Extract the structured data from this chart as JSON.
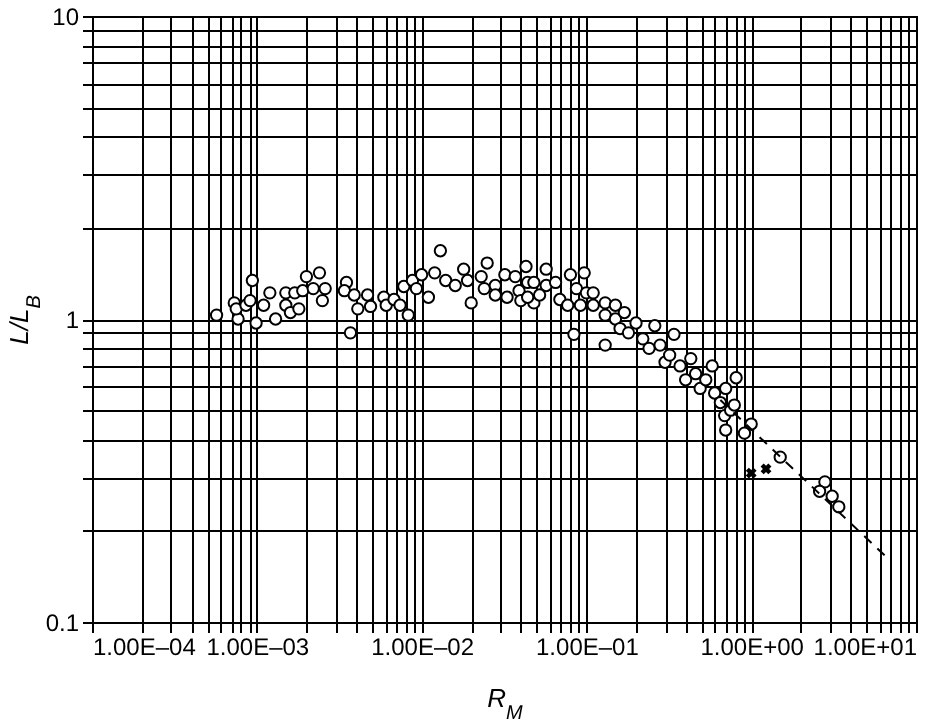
{
  "chart_data": {
    "type": "scatter",
    "xlabel": "R$_{M}$",
    "ylabel": "L/L$_{B}$",
    "log": "xy",
    "grid": true,
    "xlim": [
      0.0001,
      10
    ],
    "ylim": [
      0.1,
      10
    ],
    "xticks": [
      {
        "value": 0.0001,
        "label": "1.00E–04"
      },
      {
        "value": 0.0002,
        "label": null
      },
      {
        "value": 0.0003,
        "label": null
      },
      {
        "value": 0.0004,
        "label": null
      },
      {
        "value": 0.0005,
        "label": null
      },
      {
        "value": 0.0006,
        "label": null
      },
      {
        "value": 0.0007,
        "label": null
      },
      {
        "value": 0.0008,
        "label": null
      },
      {
        "value": 0.0009,
        "label": null
      },
      {
        "value": 0.001,
        "label": "1.00E–03"
      },
      {
        "value": 0.002,
        "label": null
      },
      {
        "value": 0.003,
        "label": null
      },
      {
        "value": 0.004,
        "label": null
      },
      {
        "value": 0.005,
        "label": null
      },
      {
        "value": 0.006,
        "label": null
      },
      {
        "value": 0.007,
        "label": null
      },
      {
        "value": 0.008,
        "label": null
      },
      {
        "value": 0.009,
        "label": null
      },
      {
        "value": 0.01,
        "label": "1.00E–02"
      },
      {
        "value": 0.02,
        "label": null
      },
      {
        "value": 0.03,
        "label": null
      },
      {
        "value": 0.04,
        "label": null
      },
      {
        "value": 0.05,
        "label": null
      },
      {
        "value": 0.06,
        "label": null
      },
      {
        "value": 0.07,
        "label": null
      },
      {
        "value": 0.08,
        "label": null
      },
      {
        "value": 0.09,
        "label": null
      },
      {
        "value": 0.1,
        "label": "1.00E–01"
      },
      {
        "value": 0.2,
        "label": null
      },
      {
        "value": 0.3,
        "label": null
      },
      {
        "value": 0.4,
        "label": null
      },
      {
        "value": 0.5,
        "label": null
      },
      {
        "value": 0.6,
        "label": null
      },
      {
        "value": 0.7,
        "label": null
      },
      {
        "value": 0.8,
        "label": null
      },
      {
        "value": 0.9,
        "label": null
      },
      {
        "value": 1,
        "label": "1.00E+00"
      },
      {
        "value": 2,
        "label": null
      },
      {
        "value": 3,
        "label": null
      },
      {
        "value": 4,
        "label": null
      },
      {
        "value": 5,
        "label": null
      },
      {
        "value": 6,
        "label": null
      },
      {
        "value": 7,
        "label": null
      },
      {
        "value": 8,
        "label": null
      },
      {
        "value": 9,
        "label": null
      },
      {
        "value": 10,
        "label": "1.00E+01"
      }
    ],
    "yticks": [
      0.1,
      {
        "value": 0.2,
        "label": null
      },
      {
        "value": 0.3,
        "label": null
      },
      {
        "value": 0.4,
        "label": null
      },
      {
        "value": 0.5,
        "label": null
      },
      {
        "value": 0.6,
        "label": null
      },
      {
        "value": 0.7,
        "label": null
      },
      {
        "value": 0.8,
        "label": null
      },
      {
        "value": 0.9,
        "label": null
      },
      1,
      {
        "value": 2,
        "label": null
      },
      {
        "value": 3,
        "label": null
      },
      {
        "value": 4,
        "label": null
      },
      {
        "value": 5,
        "label": null
      },
      {
        "value": 6,
        "label": null
      },
      {
        "value": 7,
        "label": null
      },
      {
        "value": 8,
        "label": null
      },
      {
        "value": 9,
        "label": null
      },
      10
    ],
    "series": [
      {
        "type": "scatter",
        "marker": "circle",
        "color": "#000000",
        "x": [
          0.00057,
          0.00073,
          0.00077,
          0.00075,
          0.00086,
          0.00094,
          0.00099,
          0.00091,
          0.0011,
          0.0012,
          0.0013,
          0.0015,
          0.0015,
          0.0016,
          0.0017,
          0.0018,
          0.002,
          0.0019,
          0.0022,
          0.0024,
          0.0025,
          0.0026,
          0.0035,
          0.0034,
          0.0037,
          0.0039,
          0.0041,
          0.0047,
          0.0049,
          0.0059,
          0.0061,
          0.0068,
          0.0074,
          0.0078,
          0.0083,
          0.0088,
          0.0093,
          0.011,
          0.01,
          0.012,
          0.013,
          0.014,
          0.016,
          0.018,
          0.019,
          0.02,
          0.023,
          0.025,
          0.024,
          0.028,
          0.028,
          0.032,
          0.033,
          0.037,
          0.039,
          0.04,
          0.043,
          0.044,
          0.048,
          0.048,
          0.044,
          0.057,
          0.057,
          0.052,
          0.065,
          0.069,
          0.08,
          0.077,
          0.087,
          0.097,
          0.1,
          0.092,
          0.11,
          0.11,
          0.13,
          0.13,
          0.084,
          0.15,
          0.15,
          0.17,
          0.16,
          0.18,
          0.2,
          0.22,
          0.26,
          0.24,
          0.13,
          0.28,
          0.34,
          0.3,
          0.32,
          0.37,
          0.43,
          0.4,
          0.46,
          0.49,
          0.53,
          0.58,
          0.6,
          0.65,
          0.7,
          0.69,
          0.75,
          0.81,
          0.79,
          0.7,
          0.91,
          1.0,
          1.5,
          2.8,
          2.6,
          3.1,
          3.4
        ],
        "values": [
          1.03,
          1.13,
          1.0,
          1.08,
          1.11,
          1.34,
          0.97,
          1.15,
          1.11,
          1.22,
          1.0,
          1.22,
          1.11,
          1.05,
          1.22,
          1.08,
          1.38,
          1.24,
          1.26,
          1.42,
          1.15,
          1.26,
          1.32,
          1.24,
          0.9,
          1.2,
          1.08,
          1.2,
          1.1,
          1.18,
          1.11,
          1.16,
          1.11,
          1.28,
          1.03,
          1.34,
          1.26,
          1.18,
          1.4,
          1.42,
          1.68,
          1.34,
          1.29,
          1.46,
          1.34,
          1.13,
          1.38,
          1.53,
          1.26,
          1.29,
          1.2,
          1.4,
          1.18,
          1.38,
          1.24,
          1.15,
          1.49,
          1.32,
          1.13,
          1.32,
          1.18,
          1.46,
          1.29,
          1.2,
          1.32,
          1.16,
          1.4,
          1.11,
          1.26,
          1.42,
          1.22,
          1.11,
          1.22,
          1.11,
          1.13,
          1.03,
          0.89,
          1.11,
          1.0,
          1.05,
          0.93,
          0.9,
          0.97,
          0.86,
          0.95,
          0.8,
          0.82,
          0.82,
          0.89,
          0.72,
          0.76,
          0.7,
          0.74,
          0.63,
          0.66,
          0.59,
          0.63,
          0.7,
          0.57,
          0.53,
          0.59,
          0.48,
          0.5,
          0.64,
          0.52,
          0.43,
          0.42,
          0.45,
          0.35,
          0.29,
          0.27,
          0.26,
          0.24
        ]
      },
      {
        "type": "scatter",
        "marker": "cross",
        "color": "#000000",
        "x": [
          1.0,
          1.23
        ],
        "values": [
          0.31,
          0.32
        ]
      },
      {
        "type": "line",
        "marker": "none",
        "line_style": "dashed",
        "color": "#000000",
        "x": [
          0.65,
          6.6
        ],
        "values": [
          0.54,
          0.164
        ]
      }
    ]
  }
}
